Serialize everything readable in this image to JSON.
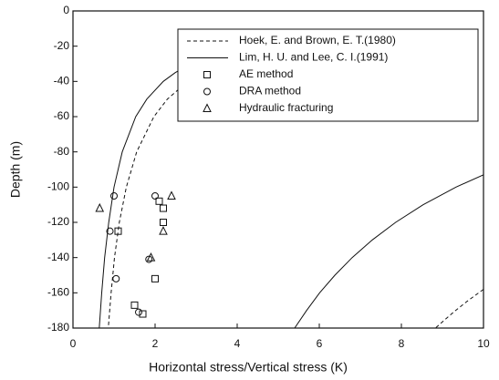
{
  "chart_data": {
    "type": "line",
    "xlabel": "Horizontal stress/Vertical stress (K)",
    "ylabel": "Depth (m)",
    "xlim": [
      0,
      10
    ],
    "xticks": [
      0,
      2,
      4,
      6,
      8,
      10
    ],
    "ylim": [
      -180,
      0
    ],
    "yticks": [
      0,
      -20,
      -40,
      -60,
      -80,
      -100,
      -120,
      -140,
      -160,
      -180
    ],
    "legend": "upper right",
    "color": "#111111",
    "series": [
      {
        "name": "Hoek, E. and Brown, E. T.(1980)",
        "style": "dashed",
        "x": [
          5.3,
          4.3,
          3.63,
          3.16,
          2.8,
          2.3,
          1.97,
          1.55,
          1.3,
          1.13,
          1.01,
          0.93,
          0.86,
          null,
          10.0,
          9.59,
          9.32,
          9.07,
          8.83
        ],
        "y": [
          -20,
          -25,
          -30,
          -35,
          -40,
          -50,
          -60,
          -80,
          -100,
          -120,
          -140,
          -160,
          -180,
          null,
          -158,
          -165,
          -170,
          -175,
          -180
        ]
      },
      {
        "name": "Lim, H. U. and Lee, C. I.(1991)",
        "style": "solid",
        "x": [
          4.2,
          3.4,
          2.87,
          2.49,
          2.2,
          1.8,
          1.53,
          1.2,
          1.0,
          0.87,
          0.77,
          0.7,
          0.64,
          null,
          10.0,
          9.33,
          8.53,
          7.86,
          7.29,
          6.8,
          6.38,
          6.01,
          5.69,
          5.4
        ],
        "y": [
          -20,
          -25,
          -30,
          -35,
          -40,
          -50,
          -60,
          -80,
          -100,
          -120,
          -140,
          -160,
          -180,
          null,
          -93,
          -100,
          -110,
          -120,
          -130,
          -140,
          -150,
          -160,
          -170,
          -180
        ]
      },
      {
        "name": "AE method",
        "marker": "square",
        "x": [
          2.1,
          2.2,
          1.1,
          2.2,
          2.0,
          1.5,
          1.7
        ],
        "y": [
          -108,
          -112,
          -125,
          -120,
          -152,
          -167,
          -172
        ]
      },
      {
        "name": "DRA method",
        "marker": "circle",
        "x": [
          1.0,
          2.0,
          0.9,
          1.85,
          1.05,
          1.6
        ],
        "y": [
          -105,
          -105,
          -125,
          -141,
          -152,
          -171
        ]
      },
      {
        "name": "Hydraulic fracturing",
        "marker": "triangle",
        "x": [
          0.65,
          2.4,
          2.2,
          1.9
        ],
        "y": [
          -112,
          -105,
          -125,
          -140
        ]
      }
    ]
  }
}
